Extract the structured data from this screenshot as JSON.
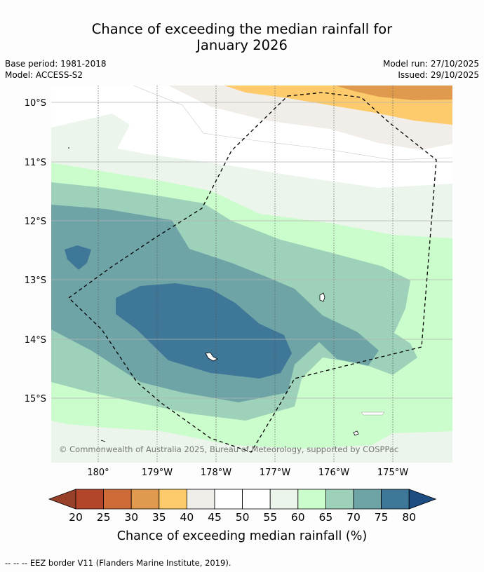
{
  "title_line1": "Chance of exceeding the median rainfall for",
  "title_line2": "January 2026",
  "base_period": "Base period: 1981-2018",
  "model": "Model: ACCESS-S2",
  "model_run": "Model run: 27/10/2025",
  "issued": "Issued: 29/10/2025",
  "lat_labels": [
    "10°S",
    "11°S",
    "12°S",
    "13°S",
    "14°S",
    "15°S"
  ],
  "lon_labels": [
    "180°",
    "179°W",
    "178°W",
    "177°W",
    "176°W",
    "175°W"
  ],
  "copyright": "© Commonwealth of Australia 2025, Bureau of Meteorology, supported by COSPPac",
  "colorbar": {
    "ticks": [
      "20",
      "25",
      "30",
      "35",
      "40",
      "45",
      "50",
      "55",
      "60",
      "65",
      "70",
      "75",
      "80"
    ],
    "colors": [
      "#b3462a",
      "#cd6a38",
      "#e09a4e",
      "#fdcb6c",
      "#f1ede8",
      "#ffffff",
      "#ffffff",
      "#ebf5eb",
      "#cbfccb",
      "#9dd1ba",
      "#6ea4a6",
      "#3f7798"
    ],
    "under_color": "#98402a",
    "over_color": "#1e4d84",
    "label": "Chance of exceeding median rainfall (%)"
  },
  "footnote": "--  --  -- EEZ border V11 (Flanders Marine Institute, 2019)."
}
